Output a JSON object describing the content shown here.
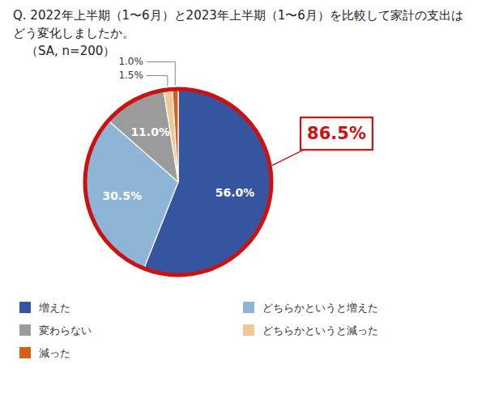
{
  "chart_data": {
    "type": "pie",
    "title": "Q. 2022年上半期（1〜6月）と2023年上半期（1〜6月）を比較して家計の支出はどう変化しましたか。",
    "subtitle": "（SA, n=200）",
    "categories": [
      "増えた",
      "どちらかというと増えた",
      "変わらない",
      "どちらかというと減った",
      "減った"
    ],
    "values": [
      56.0,
      30.5,
      11.0,
      1.5,
      1.0
    ],
    "value_labels": [
      "56.0%",
      "30.5%",
      "11.0%",
      "1.5%",
      "1.0%"
    ],
    "colors": [
      "#3655a0",
      "#8eb4d8",
      "#9b9b9b",
      "#f0c896",
      "#d4601a"
    ],
    "data_labels": true,
    "legend": "bottom",
    "annotations": [
      {
        "text": "86.5%",
        "color": "#cc1111"
      }
    ]
  }
}
